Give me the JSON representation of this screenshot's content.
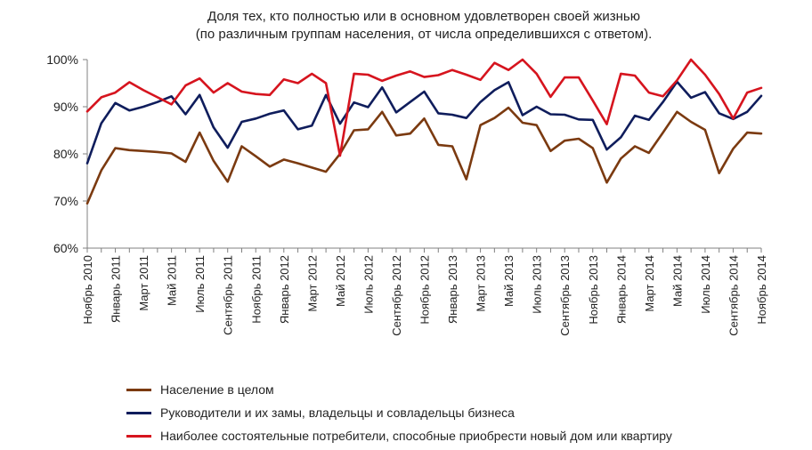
{
  "chart_data": {
    "type": "line",
    "title_lines": [
      "Доля тех, кто полностью или  в основном удовлетворен своей жизнью",
      "(по различным группам населения, от числа определившихся  с ответом)."
    ],
    "xlabel": "",
    "ylabel": "",
    "ylim": [
      60,
      100
    ],
    "yticks": [
      60,
      70,
      80,
      90,
      100
    ],
    "y_tick_labels": [
      "60%",
      "70%",
      "80%",
      "90%",
      "100%"
    ],
    "grid": false,
    "legend_position": "bottom",
    "x_tick_labels": [
      "Ноябрь 2010",
      "Январь 2011",
      "Март 2011",
      "Май 2011",
      "Июль 2011",
      "Сентябрь 2011",
      "Ноябрь 2011",
      "Январь 2012",
      "Март 2012",
      "Май 2012",
      "Июль 2012",
      "Сентябрь 2012",
      "Ноябрь 2012",
      "Январь 2013",
      "Март 2013",
      "Май 2013",
      "Июль 2013",
      "Сентябрь 2013",
      "Ноябрь 2013",
      "Январь 2014",
      "Март 2014",
      "Май 2014",
      "Июль 2014",
      "Сентябрь 2014",
      "Ноябрь 2014"
    ],
    "series": [
      {
        "name": "Население в целом",
        "color": "#7b3a10",
        "values": [
          69.5,
          76.5,
          81.2,
          80.8,
          80.6,
          80.4,
          80.1,
          78.3,
          84.5,
          78.5,
          74.1,
          81.6,
          79.5,
          77.3,
          78.8,
          78.0,
          77.1,
          76.2,
          80.0,
          85.0,
          85.2,
          88.9,
          83.9,
          84.3,
          87.5,
          81.9,
          81.6,
          74.6,
          86.1,
          87.6,
          89.8,
          86.6,
          86.1,
          80.6,
          82.8,
          83.2,
          81.2,
          73.9,
          79.0,
          81.6,
          80.2,
          84.5,
          88.9,
          86.8,
          85.1,
          75.9,
          81.1,
          84.5,
          84.3
        ]
      },
      {
        "name": "Руководители и их замы, владельцы и совладельцы бизнеса",
        "color": "#0f1d5c",
        "values": [
          78.0,
          86.5,
          90.8,
          89.2,
          90.0,
          91.0,
          92.2,
          88.4,
          92.5,
          85.6,
          81.3,
          86.8,
          87.5,
          88.5,
          89.2,
          85.2,
          86.0,
          92.5,
          86.4,
          90.9,
          89.9,
          94.1,
          88.8,
          91.0,
          93.2,
          88.6,
          88.3,
          87.6,
          91.0,
          93.5,
          95.2,
          88.2,
          90.0,
          88.4,
          88.3,
          87.3,
          87.2,
          80.9,
          83.5,
          88.1,
          87.2,
          91.0,
          95.3,
          91.9,
          93.1,
          88.6,
          87.4,
          88.9,
          92.3
        ]
      },
      {
        "name": "Наиболее состоятельные потребители, способные приобрести новый дом или квартиру",
        "color": "#d6141e",
        "values": [
          89.0,
          92.0,
          93.0,
          95.2,
          93.5,
          92.0,
          90.5,
          94.5,
          96.0,
          93.0,
          95.0,
          93.2,
          92.7,
          92.5,
          95.8,
          95.0,
          97.0,
          95.0,
          79.6,
          97.0,
          96.8,
          95.5,
          96.6,
          97.5,
          96.3,
          96.7,
          97.8,
          96.8,
          95.7,
          99.3,
          97.8,
          100.0,
          97.0,
          92.1,
          96.2,
          96.2,
          91.3,
          86.3,
          97.0,
          96.6,
          93.0,
          92.2,
          95.6,
          100.0,
          96.8,
          92.7,
          87.5,
          93.0,
          94.0
        ]
      }
    ]
  }
}
